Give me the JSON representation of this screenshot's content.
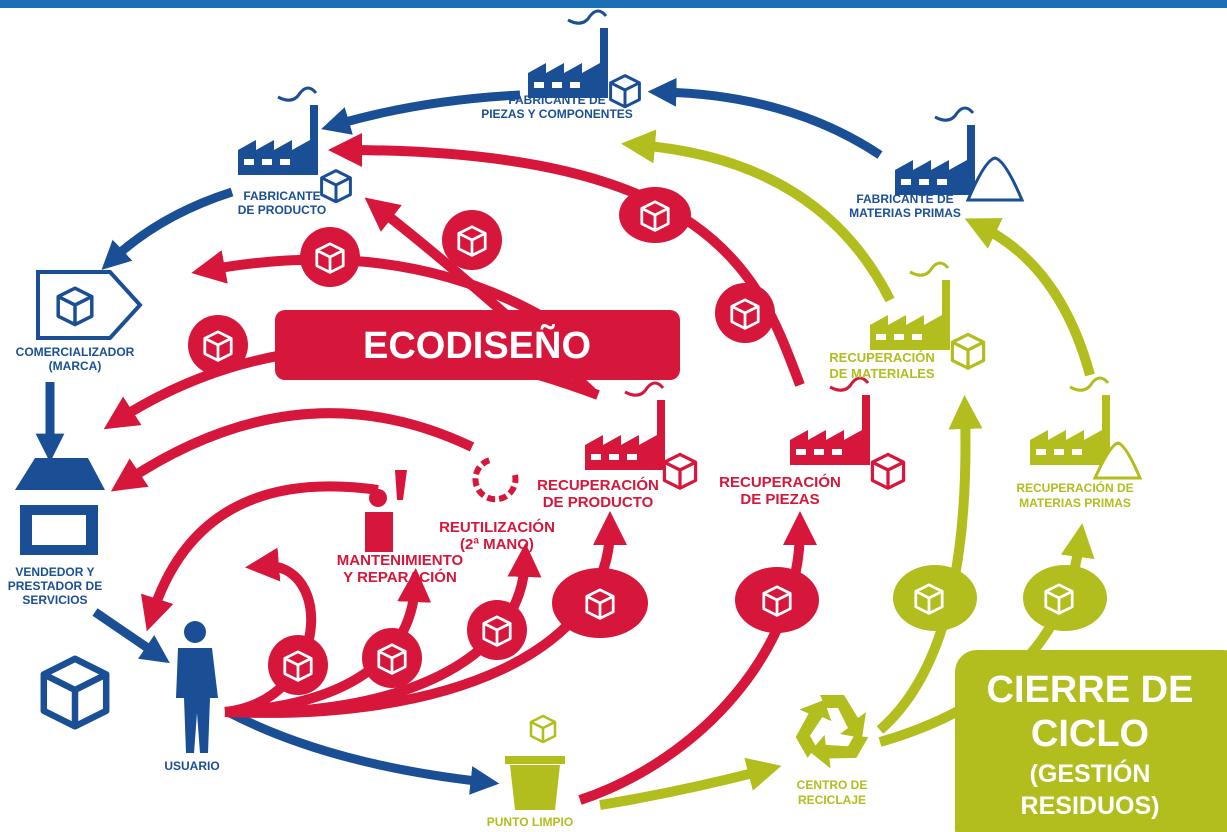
{
  "labels": {
    "fabricante_piezas": [
      "FABRICANTE DE",
      "PIEZAS Y COMPONENTES"
    ],
    "fabricante_producto": [
      "FABRICANTE",
      "DE PRODUCTO"
    ],
    "fabricante_materias": [
      "FABRICANTE DE",
      "MATERIAS PRIMAS"
    ],
    "comercializador": [
      "COMERCIALIZADOR",
      "(MARCA)"
    ],
    "vendedor": [
      "VENDEDOR Y",
      "PRESTADOR DE",
      "SERVICIOS"
    ],
    "usuario": [
      "USUARIO"
    ],
    "punto_limpio": [
      "PUNTO LIMPIO"
    ],
    "centro_reciclaje": [
      "CENTRO DE",
      "RECICLAJE"
    ],
    "recuperacion_materiales": [
      "RECUPERACIÓN",
      "DE MATERIALES"
    ],
    "recuperacion_materias": [
      "RECUPERACIÓN DE",
      "MATERIAS PRIMAS"
    ],
    "recuperacion_producto": [
      "RECUPERACIÓN",
      "DE PRODUCTO"
    ],
    "recuperacion_piezas": [
      "RECUPERACIÓN",
      "DE PIEZAS"
    ],
    "reutilizacion": [
      "REUTILIZACIÓN",
      "(2ª MANO)"
    ],
    "mantenimiento": [
      "MANTENIMIENTO",
      "Y REPARACIÓN"
    ]
  },
  "banners": {
    "ecodiseno": "ECODISEÑO",
    "cierre": [
      "CIERRE DE",
      "CICLO",
      "(GESTIÓN",
      "RESIDUOS)"
    ]
  }
}
